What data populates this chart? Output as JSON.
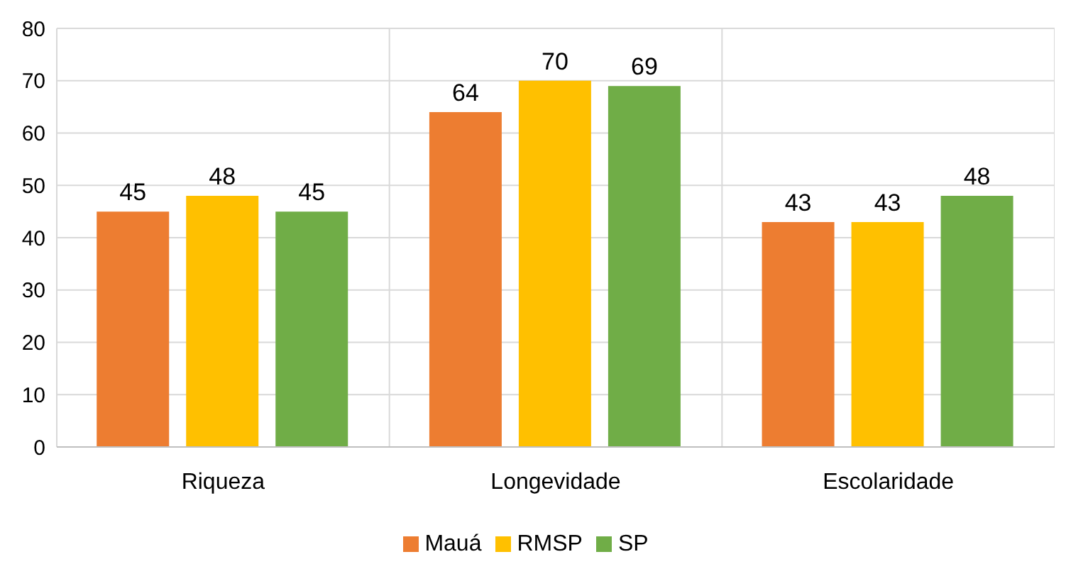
{
  "chart_data": {
    "type": "bar",
    "categories": [
      "Riqueza",
      "Longevidade",
      "Escolaridade"
    ],
    "series": [
      {
        "name": "Mauá",
        "color": "#ed7d31",
        "values": [
          45,
          64,
          43
        ]
      },
      {
        "name": "RMSP",
        "color": "#ffc000",
        "values": [
          48,
          70,
          43
        ]
      },
      {
        "name": "SP",
        "color": "#70ad47",
        "values": [
          45,
          69,
          48
        ]
      }
    ],
    "ylim": [
      0,
      80
    ],
    "yticks": [
      0,
      10,
      20,
      30,
      40,
      50,
      60,
      70,
      80
    ],
    "grid": true,
    "legend": "bottom",
    "data_labels": true
  }
}
